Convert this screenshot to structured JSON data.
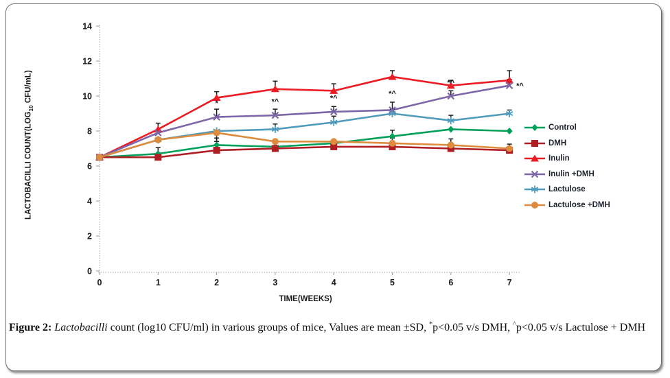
{
  "figure": {
    "caption": {
      "label": "Figure 2:",
      "species": " Lactobacilli",
      "body1": " count (log10 CFU/ml) in various groups of mice, Values are mean ±SD, ",
      "sup1": "*",
      "body2": "p<0.05 v/s DMH, ",
      "sup2": "^",
      "body3": "p<0.05 v/s Lactulose + DMH"
    }
  },
  "chart_data": {
    "type": "line",
    "title": "",
    "xlabel": "TIME(WEEKS)",
    "ylabel": "LACTOBACILLI COUNT(LOG10 CFU/mL)",
    "ylabel_parts": {
      "pre": "LACTOBACILLI COUNT(LOG",
      "sub": "10",
      "post": " CFU/mL)"
    },
    "x": [
      0,
      1,
      2,
      3,
      4,
      5,
      6,
      7
    ],
    "ylim": [
      0,
      14
    ],
    "yticks": [
      0,
      2,
      4,
      6,
      8,
      10,
      12,
      14
    ],
    "grid": false,
    "legend_position": "right",
    "axis_color": "#b5b5b5",
    "error_bar_color": "#1c1c1c",
    "annotation_color": "#111111",
    "series": [
      {
        "name": "Control",
        "color": "#00A05A",
        "marker": "diamond",
        "values": [
          6.5,
          6.7,
          7.2,
          7.1,
          7.3,
          7.7,
          8.1,
          8.0
        ],
        "err": [
          0,
          0.35,
          0.4,
          0,
          0,
          0.35,
          0,
          0
        ]
      },
      {
        "name": "DMH",
        "color": "#AF1E23",
        "marker": "square",
        "values": [
          6.5,
          6.5,
          6.9,
          7.0,
          7.1,
          7.1,
          7.0,
          6.9
        ],
        "err": [
          0,
          0,
          0,
          0,
          0,
          0,
          0,
          0
        ]
      },
      {
        "name": "Inulin",
        "color": "#EC1C24",
        "marker": "triangle",
        "values": [
          6.5,
          8.1,
          9.9,
          10.4,
          10.3,
          11.1,
          10.6,
          10.9
        ],
        "err": [
          0,
          0.35,
          0.35,
          0.45,
          0.4,
          0.35,
          0.3,
          0.55
        ]
      },
      {
        "name": "Inulin +DMH",
        "color": "#7D66A8",
        "marker": "x",
        "values": [
          6.5,
          7.9,
          8.8,
          8.9,
          9.1,
          9.2,
          10.0,
          10.6
        ],
        "err": [
          0,
          0,
          0.45,
          0.35,
          0.3,
          0.45,
          0.3,
          0.35
        ]
      },
      {
        "name": "Lactulose",
        "color": "#4F9BBB",
        "marker": "star",
        "values": [
          6.5,
          7.5,
          8.0,
          8.1,
          8.5,
          9.0,
          8.6,
          9.0
        ],
        "err": [
          0,
          0,
          0,
          0.3,
          0.35,
          0.25,
          0.3,
          0.2
        ]
      },
      {
        "name": "Lactulose +DMH",
        "color": "#DD8C3F",
        "marker": "circle",
        "values": [
          6.5,
          7.5,
          7.9,
          7.4,
          7.4,
          7.3,
          7.2,
          7.0
        ],
        "err": [
          0,
          0,
          -0.5,
          -0.35,
          0,
          0.3,
          0.35,
          0.25
        ]
      }
    ],
    "annotations": [
      {
        "x": 2,
        "y": 9.45,
        "text": "*"
      },
      {
        "x": 3,
        "y": 9.55,
        "text": "*^"
      },
      {
        "x": 4,
        "y": 9.75,
        "text": "*^"
      },
      {
        "x": 5,
        "y": 10.0,
        "text": "*^"
      },
      {
        "x": 6,
        "y": 10.62,
        "text": "*^"
      },
      {
        "x": 7.18,
        "y": 10.45,
        "text": "*^"
      }
    ]
  }
}
